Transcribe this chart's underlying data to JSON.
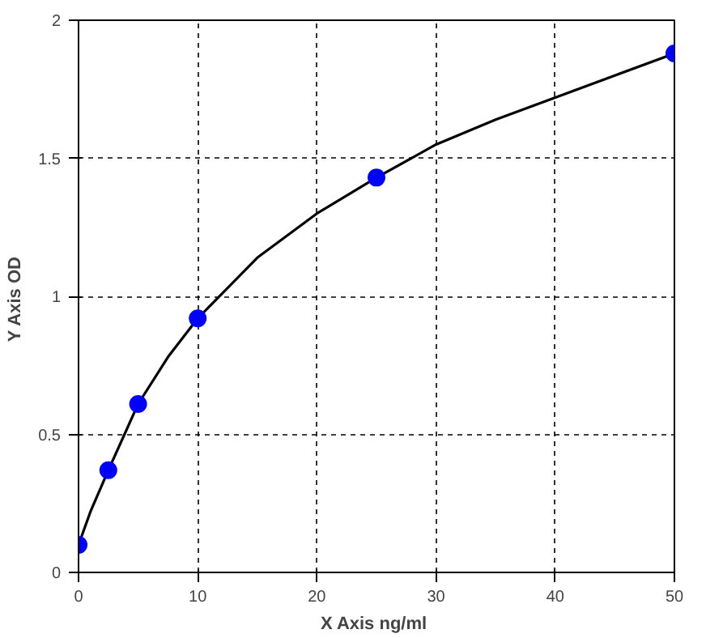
{
  "chart_data": {
    "type": "scatter",
    "xlabel": "X  Axis ng/ml",
    "ylabel": "Y  Axis OD",
    "xlim": [
      0,
      50
    ],
    "ylim": [
      0,
      2
    ],
    "xticks": [
      0,
      10,
      20,
      30,
      40,
      50
    ],
    "yticks": [
      0,
      0.5,
      1,
      1.5,
      2
    ],
    "grid": true,
    "series": [
      {
        "type": "line",
        "color": "#000000",
        "marker": "none",
        "x": [
          0,
          1,
          2.5,
          5,
          7.5,
          10,
          15,
          20,
          25,
          30,
          35,
          40,
          45,
          50
        ],
        "values": [
          0.1,
          0.22,
          0.37,
          0.61,
          0.78,
          0.92,
          1.14,
          1.3,
          1.43,
          1.55,
          1.64,
          1.72,
          1.8,
          1.88
        ]
      },
      {
        "color": "#0000ff",
        "marker": "circle",
        "x": [
          0,
          2.5,
          5,
          10,
          25,
          50
        ],
        "values": [
          0.1,
          0.37,
          0.61,
          0.92,
          1.43,
          1.88
        ]
      }
    ]
  }
}
